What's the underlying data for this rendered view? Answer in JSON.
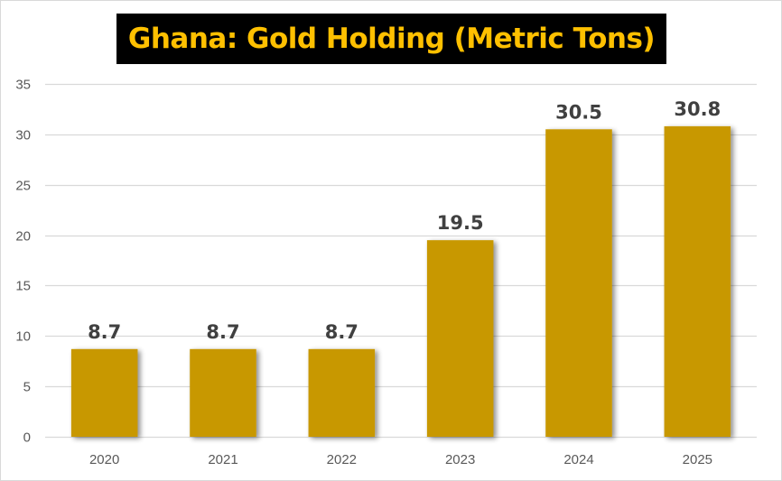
{
  "chart_data": {
    "type": "bar",
    "title": "Ghana: Gold Holding (Metric Tons)",
    "xlabel": "",
    "ylabel": "",
    "categories": [
      "2020",
      "2021",
      "2022",
      "2023",
      "2024",
      "2025"
    ],
    "values": [
      8.7,
      8.7,
      8.7,
      19.5,
      30.5,
      30.8
    ],
    "data_labels": [
      "8.7",
      "8.7",
      "8.7",
      "19.5",
      "30.5",
      "30.8"
    ],
    "ylim": [
      0,
      35
    ],
    "yticks": [
      0,
      5,
      10,
      15,
      20,
      25,
      30,
      35
    ],
    "ytick_labels": [
      "0",
      "5",
      "10",
      "15",
      "20",
      "25",
      "30",
      "35"
    ],
    "grid": true,
    "legend": "none",
    "colors": {
      "bar": "#c89800",
      "title_text": "#ffc000",
      "title_background": "#000000",
      "gridline": "#d9d9d9",
      "data_label": "#404040",
      "tick_label": "#595959"
    }
  }
}
